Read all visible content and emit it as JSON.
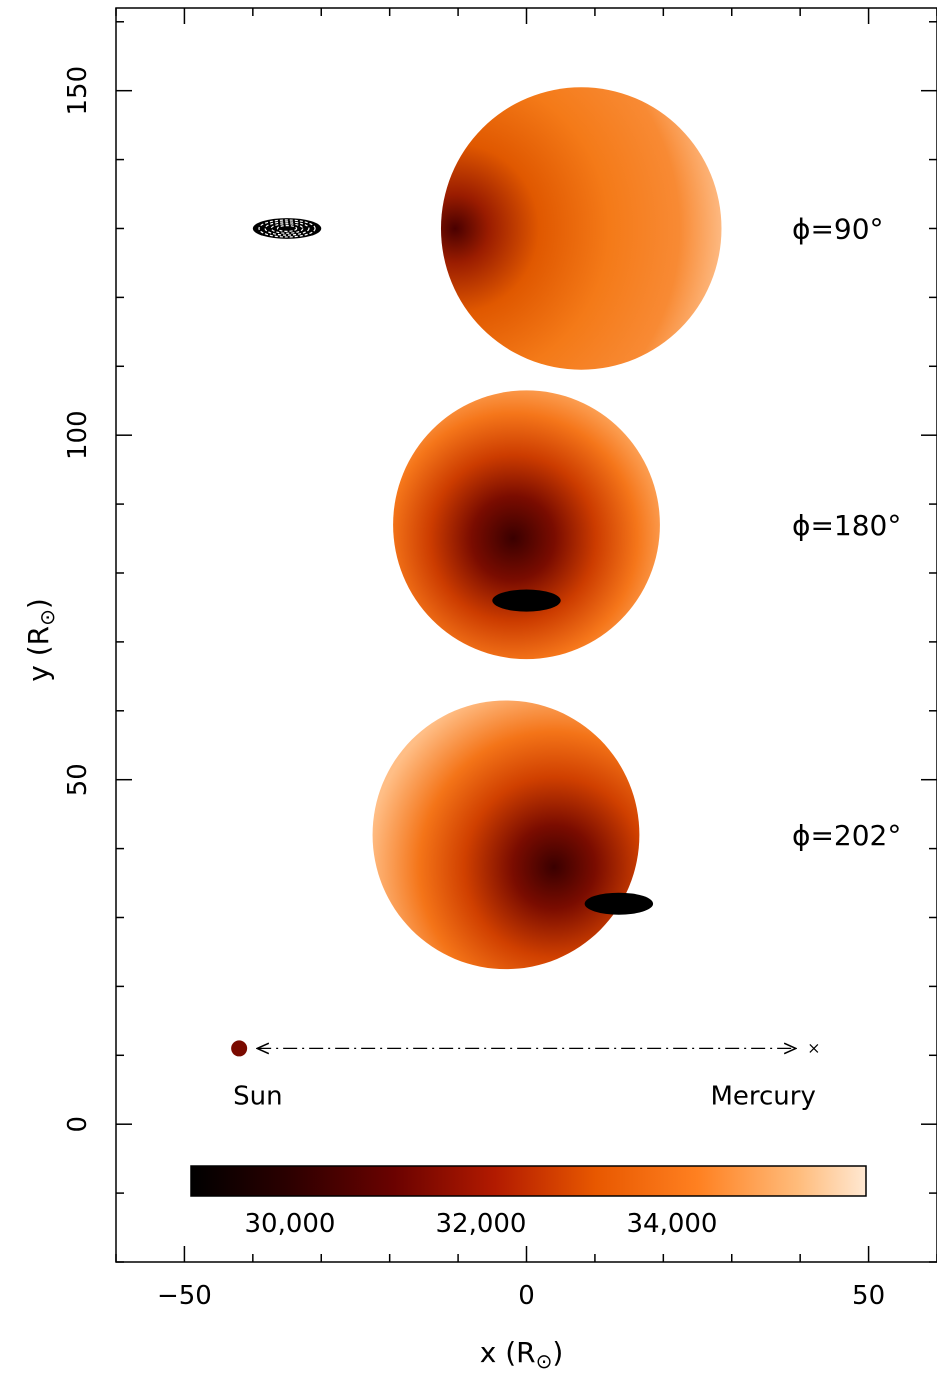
{
  "chart_data": {
    "type": "heatmap",
    "xlabel": "x (R",
    "ylabel": "y (R",
    "label_suffix": ")",
    "solar_symbol": "⊙",
    "xlim": [
      -60,
      60
    ],
    "ylim": [
      -20,
      162
    ],
    "x_ticks": [
      -50,
      0,
      50
    ],
    "y_ticks": [
      0,
      50,
      100,
      150
    ],
    "x_tick_labels": [
      "−50",
      "0",
      "50"
    ],
    "y_tick_labels": [
      "0",
      "50",
      "100",
      "150"
    ],
    "x_minor_step": 10,
    "y_minor_step": 10,
    "disks": [
      {
        "phase_label": "ϕ=90°",
        "cx": 8,
        "cy": 130,
        "r": 20.5,
        "dark_side": "left",
        "eclipse": {
          "cx": -35,
          "cy": 130,
          "rx": 5,
          "ry": 1.5,
          "style": "ring"
        }
      },
      {
        "phase_label": "ϕ=180°",
        "cx": 0,
        "cy": 87,
        "r": 19.5,
        "dark_side": "center",
        "eclipse": {
          "cx": 0,
          "cy": 76,
          "rx": 5,
          "ry": 1.6,
          "style": "solid"
        }
      },
      {
        "phase_label": "ϕ=202°",
        "cx": -3,
        "cy": 42,
        "r": 19.5,
        "dark_side": "lower-right",
        "eclipse": {
          "cx": 13.5,
          "cy": 32,
          "rx": 5,
          "ry": 1.6,
          "style": "solid"
        }
      }
    ],
    "scale_bar": {
      "y": 11,
      "x_start": -42,
      "x_end": 42,
      "left_label": "Sun",
      "right_label": "Mercury"
    },
    "colorbar": {
      "tick_labels": [
        "30,000",
        "32,000",
        "34,000"
      ],
      "tick_values": [
        30000,
        32000,
        34000
      ],
      "colors": [
        "#000000",
        "#3a0000",
        "#8b0a00",
        "#c22a00",
        "#f06000",
        "#ff8c2a",
        "#ffc080",
        "#ffe6cc"
      ]
    }
  }
}
